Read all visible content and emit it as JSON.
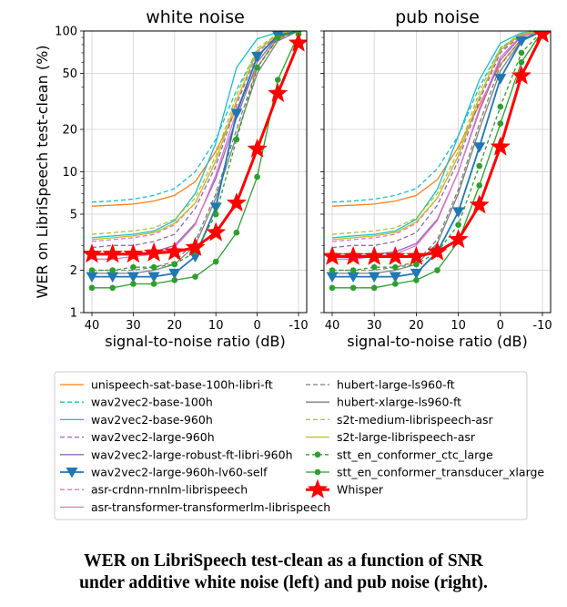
{
  "chart_data": [
    {
      "type": "line",
      "title": "white noise",
      "xlabel": "signal-to-noise ratio (dB)",
      "ylabel": "WER on LibriSpeech test-clean (%)",
      "x": [
        40,
        35,
        30,
        25,
        20,
        15,
        10,
        5,
        0,
        -5,
        -10
      ],
      "x_ticks": [
        "40",
        "30",
        "20",
        "10",
        "0",
        "-10"
      ],
      "x_reversed": true,
      "y_scale": "log",
      "ylim": [
        1,
        100
      ],
      "y_ticks": [
        "1",
        "2",
        "5",
        "10",
        "20",
        "50",
        "100"
      ],
      "grid": true,
      "series": [
        {
          "name": "unispeech-sat-base-100h-libri-ft",
          "color": "#ff7f0e",
          "style": "solid",
          "values": [
            5.7,
            5.8,
            5.9,
            6.2,
            6.8,
            8.5,
            14,
            28,
            55,
            90,
            100
          ]
        },
        {
          "name": "wav2vec2-base-100h",
          "color": "#17becf",
          "style": "dashed",
          "values": [
            6.1,
            6.2,
            6.4,
            6.8,
            7.6,
            10,
            17,
            38,
            72,
            95,
            100
          ]
        },
        {
          "name": "wav2vec2-base-960h",
          "color": "#17becf",
          "style": "solid",
          "values": [
            3.4,
            3.5,
            3.6,
            3.8,
            4.5,
            7,
            16,
            55,
            88,
            98,
            100
          ]
        },
        {
          "name": "wav2vec2-large-960h",
          "color": "#9467bd",
          "style": "dashed",
          "values": [
            2.9,
            3.0,
            3.0,
            3.2,
            3.6,
            5.5,
            11,
            30,
            70,
            95,
            100
          ]
        },
        {
          "name": "wav2vec2-large-robust-ft-libri-960h",
          "color": "#9467bd",
          "style": "solid",
          "values": [
            2.6,
            2.6,
            2.6,
            2.7,
            3.0,
            4.3,
            9,
            24,
            60,
            92,
            100
          ]
        },
        {
          "name": "wav2vec2-large-960h-lv60-self",
          "color": "#1f77b4",
          "style": "solid",
          "marker": "triangle",
          "values": [
            1.8,
            1.8,
            1.8,
            1.8,
            1.9,
            2.5,
            5.6,
            26,
            66,
            93,
            100
          ]
        },
        {
          "name": "asr-crdnn-rnnlm-librispeech",
          "color": "#e377c2",
          "style": "dashed",
          "values": [
            3.2,
            3.3,
            3.4,
            3.6,
            4.2,
            6,
            12,
            32,
            70,
            94,
            100
          ]
        },
        {
          "name": "asr-transformer-transformerlm-librispeech",
          "color": "#e377c2",
          "style": "solid",
          "values": [
            2.4,
            2.4,
            2.5,
            2.6,
            2.9,
            4.2,
            9.5,
            27,
            65,
            93,
            100
          ]
        },
        {
          "name": "hubert-large-ls960-ft",
          "color": "#7f7f7f",
          "style": "dashed",
          "values": [
            2.0,
            2.0,
            2.0,
            2.1,
            2.3,
            3.2,
            7,
            20,
            55,
            88,
            100
          ]
        },
        {
          "name": "hubert-xlarge-ls960-ft",
          "color": "#7f7f7f",
          "style": "solid",
          "values": [
            1.9,
            1.9,
            1.9,
            2.0,
            2.2,
            3.0,
            6.5,
            18,
            50,
            85,
            100
          ]
        },
        {
          "name": "s2t-medium-librispeech-asr",
          "color": "#bcbd22",
          "style": "dashed",
          "values": [
            3.6,
            3.7,
            3.8,
            4.0,
            4.6,
            6.5,
            13,
            35,
            75,
            96,
            100
          ]
        },
        {
          "name": "s2t-large-librispeech-asr",
          "color": "#bcbd22",
          "style": "solid",
          "values": [
            3.3,
            3.4,
            3.5,
            3.7,
            4.3,
            6,
            12,
            32,
            72,
            95,
            100
          ]
        },
        {
          "name": "stt_en_conformer_ctc_large",
          "color": "#2ca02c",
          "style": "dashed",
          "marker": "circle",
          "values": [
            2.0,
            2.0,
            2.1,
            2.1,
            2.2,
            2.7,
            5.0,
            17,
            55,
            90,
            100
          ]
        },
        {
          "name": "stt_en_conformer_transducer_xlarge",
          "color": "#2ca02c",
          "style": "solid",
          "marker": "circle",
          "values": [
            1.5,
            1.5,
            1.6,
            1.6,
            1.7,
            1.8,
            2.3,
            3.7,
            9.2,
            45,
            95
          ]
        },
        {
          "name": "Whisper",
          "color": "#ff0000",
          "style": "solid",
          "marker": "star",
          "values": [
            2.6,
            2.6,
            2.6,
            2.65,
            2.7,
            2.9,
            3.7,
            6.0,
            14.5,
            36,
            82
          ]
        }
      ]
    },
    {
      "type": "line",
      "title": "pub noise",
      "xlabel": "signal-to-noise ratio (dB)",
      "x": [
        40,
        35,
        30,
        25,
        20,
        15,
        10,
        5,
        0,
        -5,
        -10
      ],
      "x_ticks": [
        "40",
        "30",
        "20",
        "10",
        "0",
        "-10"
      ],
      "x_reversed": true,
      "y_scale": "log",
      "ylim": [
        1,
        100
      ],
      "grid": true,
      "series": [
        {
          "name": "unispeech-sat-base-100h-libri-ft",
          "color": "#ff7f0e",
          "style": "solid",
          "values": [
            5.7,
            5.8,
            5.9,
            6.2,
            6.8,
            8.8,
            15,
            30,
            58,
            88,
            100
          ]
        },
        {
          "name": "wav2vec2-base-100h",
          "color": "#17becf",
          "style": "dashed",
          "values": [
            6.1,
            6.2,
            6.4,
            6.8,
            7.6,
            10.5,
            18,
            40,
            75,
            96,
            100
          ]
        },
        {
          "name": "wav2vec2-base-960h",
          "color": "#17becf",
          "style": "solid",
          "values": [
            3.4,
            3.5,
            3.6,
            3.8,
            4.6,
            7.5,
            18,
            45,
            82,
            97,
            100
          ]
        },
        {
          "name": "wav2vec2-large-960h",
          "color": "#9467bd",
          "style": "dashed",
          "values": [
            2.9,
            3.0,
            3.0,
            3.2,
            3.7,
            5.8,
            12,
            32,
            70,
            94,
            100
          ]
        },
        {
          "name": "wav2vec2-large-robust-ft-libri-960h",
          "color": "#9467bd",
          "style": "solid",
          "values": [
            2.6,
            2.6,
            2.6,
            2.7,
            3.1,
            4.6,
            10,
            27,
            62,
            92,
            100
          ]
        },
        {
          "name": "wav2vec2-large-960h-lv60-self",
          "color": "#1f77b4",
          "style": "solid",
          "marker": "triangle",
          "values": [
            1.8,
            1.8,
            1.8,
            1.8,
            1.9,
            2.7,
            5.2,
            15,
            46,
            85,
            100
          ]
        },
        {
          "name": "asr-crdnn-rnnlm-librispeech",
          "color": "#e377c2",
          "style": "dashed",
          "values": [
            3.2,
            3.3,
            3.4,
            3.6,
            4.3,
            6.5,
            13,
            34,
            72,
            95,
            100
          ]
        },
        {
          "name": "asr-transformer-transformerlm-librispeech",
          "color": "#e377c2",
          "style": "solid",
          "values": [
            2.4,
            2.4,
            2.5,
            2.6,
            3.0,
            4.5,
            10,
            28,
            65,
            93,
            100
          ]
        },
        {
          "name": "hubert-large-ls960-ft",
          "color": "#7f7f7f",
          "style": "dashed",
          "values": [
            2.0,
            2.0,
            2.0,
            2.1,
            2.3,
            3.3,
            7.5,
            22,
            57,
            88,
            100
          ]
        },
        {
          "name": "hubert-xlarge-ls960-ft",
          "color": "#7f7f7f",
          "style": "solid",
          "values": [
            1.9,
            1.9,
            1.9,
            2.0,
            2.2,
            3.1,
            7,
            20,
            52,
            86,
            100
          ]
        },
        {
          "name": "s2t-medium-librispeech-asr",
          "color": "#bcbd22",
          "style": "dashed",
          "values": [
            3.6,
            3.7,
            3.8,
            4.0,
            4.7,
            7,
            14,
            37,
            76,
            96,
            100
          ]
        },
        {
          "name": "s2t-large-librispeech-asr",
          "color": "#bcbd22",
          "style": "solid",
          "values": [
            3.3,
            3.4,
            3.5,
            3.7,
            4.4,
            6.5,
            13,
            34,
            73,
            95,
            100
          ]
        },
        {
          "name": "stt_en_conformer_ctc_large",
          "color": "#2ca02c",
          "style": "dashed",
          "marker": "circle",
          "values": [
            2.0,
            2.0,
            2.1,
            2.1,
            2.2,
            2.7,
            4.2,
            11,
            29,
            70,
            100
          ]
        },
        {
          "name": "stt_en_conformer_transducer_xlarge",
          "color": "#2ca02c",
          "style": "solid",
          "marker": "circle",
          "values": [
            1.5,
            1.5,
            1.5,
            1.6,
            1.7,
            2.0,
            3.2,
            8,
            22,
            60,
            100
          ]
        },
        {
          "name": "Whisper",
          "color": "#ff0000",
          "style": "solid",
          "marker": "star",
          "values": [
            2.5,
            2.5,
            2.5,
            2.5,
            2.5,
            2.7,
            3.3,
            5.8,
            15,
            48,
            95
          ]
        }
      ]
    }
  ],
  "legend": {
    "placement": "bottom",
    "columns": 2
  },
  "caption": {
    "line1": "WER on LibriSpeech test-clean as a function of SNR",
    "line2": "under additive white noise (left) and pub noise (right)."
  }
}
